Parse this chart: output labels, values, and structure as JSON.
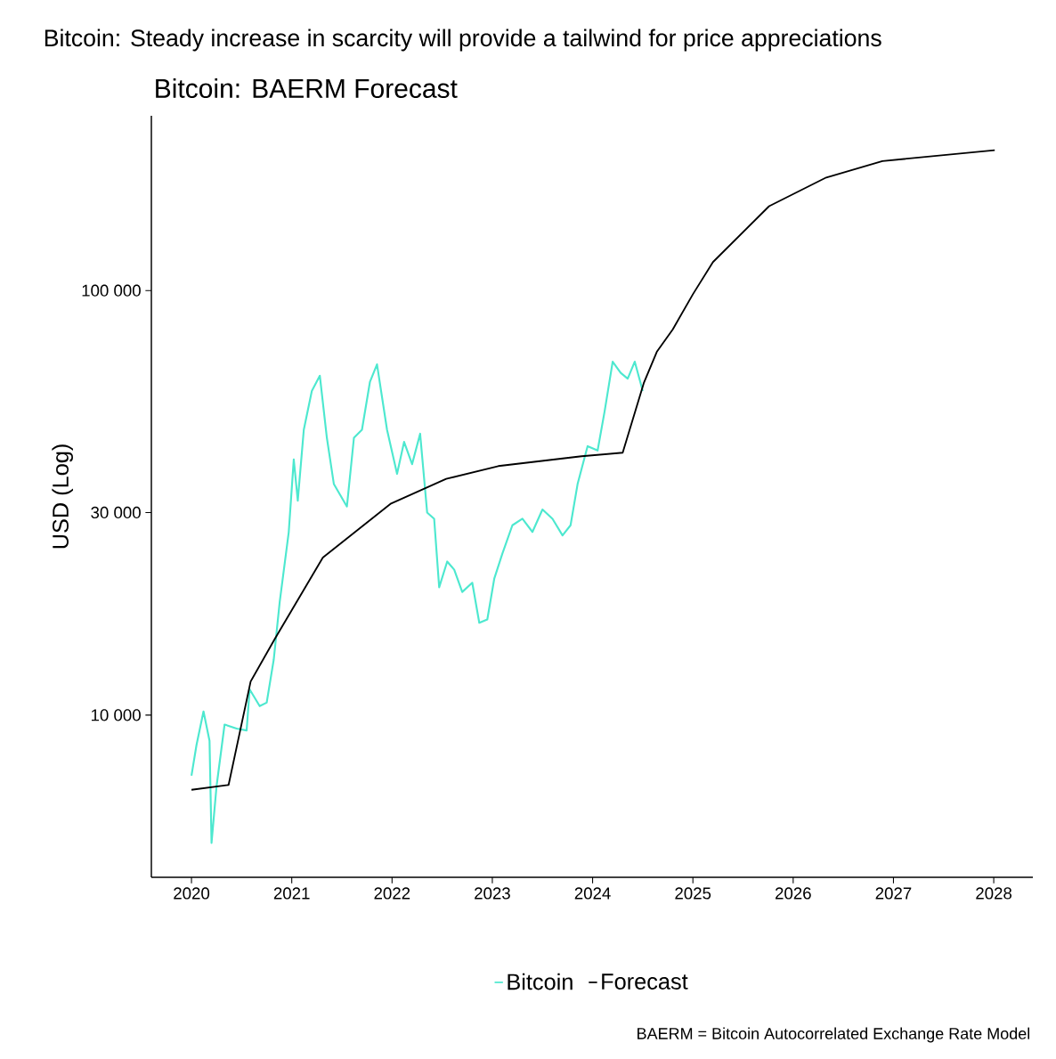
{
  "chart_data": {
    "type": "line",
    "title": "Bitcoin: Steady increase in scarcity will provide a tailwind for price appreciations",
    "subtitle": "Bitcoin: BAERM Forecast",
    "ylabel": "USD (Log)",
    "log": "y",
    "legend": "bottom",
    "xlim": [
      2019.6,
      2028.39
    ],
    "ylim": [
      4150,
      258000
    ],
    "xticks": [
      2020,
      2021,
      2022,
      2023,
      2024,
      2025,
      2026,
      2027,
      2028
    ],
    "yticks": [
      {
        "value": 10000,
        "label": "10 000"
      },
      {
        "value": 30000,
        "label": "30 000"
      },
      {
        "value": 100000,
        "label": "100 000"
      }
    ],
    "annotations": [
      "BAERM = Bitcoin Autocorrelated Exchange Rate Model"
    ],
    "series": [
      {
        "name": "Bitcoin",
        "color": "#4de8cf",
        "x": [
          2020.0,
          2020.05,
          2020.12,
          2020.18,
          2020.2,
          2020.25,
          2020.33,
          2020.45,
          2020.55,
          2020.58,
          2020.68,
          2020.75,
          2020.82,
          2020.88,
          2020.97,
          2021.02,
          2021.06,
          2021.12,
          2021.2,
          2021.28,
          2021.35,
          2021.42,
          2021.55,
          2021.62,
          2021.7,
          2021.78,
          2021.85,
          2021.95,
          2022.05,
          2022.12,
          2022.2,
          2022.28,
          2022.35,
          2022.42,
          2022.47,
          2022.55,
          2022.62,
          2022.7,
          2022.8,
          2022.87,
          2022.95,
          2023.02,
          2023.1,
          2023.2,
          2023.3,
          2023.4,
          2023.5,
          2023.6,
          2023.7,
          2023.78,
          2023.85,
          2023.95,
          2024.05,
          2024.12,
          2024.2,
          2024.28,
          2024.35,
          2024.42,
          2024.5
        ],
        "values": [
          7200,
          8500,
          10200,
          8700,
          5000,
          6800,
          9500,
          9300,
          9200,
          11500,
          10500,
          10700,
          13500,
          18500,
          27000,
          40000,
          32000,
          47000,
          58000,
          63000,
          45000,
          35000,
          31000,
          45000,
          47000,
          61000,
          67000,
          47000,
          37000,
          44000,
          39000,
          46000,
          30000,
          29000,
          20000,
          23000,
          22000,
          19500,
          20500,
          16500,
          16800,
          21000,
          24000,
          28000,
          29000,
          27000,
          30500,
          29000,
          26500,
          28000,
          35000,
          43000,
          42000,
          52000,
          68000,
          64000,
          62000,
          68000,
          58000
        ]
      },
      {
        "name": "Forecast",
        "color": "#000000",
        "x": [
          2020.0,
          2020.37,
          2020.59,
          2020.83,
          2021.31,
          2021.99,
          2022.54,
          2023.06,
          2023.89,
          2024.3,
          2024.51,
          2024.64,
          2024.8,
          2025.0,
          2025.2,
          2025.76,
          2026.33,
          2026.89,
          2028.01
        ],
        "values": [
          6670,
          6850,
          12000,
          15100,
          23500,
          31500,
          36000,
          38600,
          40700,
          41500,
          60500,
          71700,
          81000,
          98000,
          116700,
          158000,
          184600,
          201800,
          214000
        ]
      }
    ]
  }
}
